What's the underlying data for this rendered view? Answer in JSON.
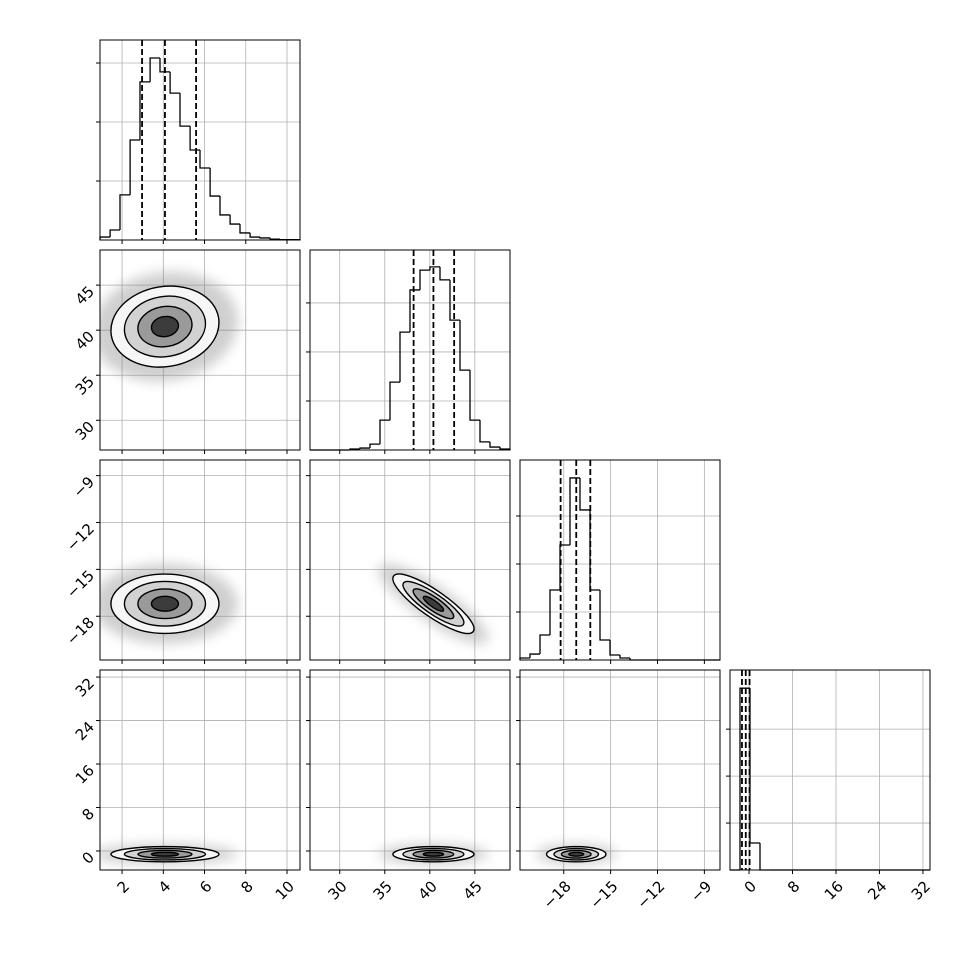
{
  "chart_data": {
    "type": "corner",
    "parameters": [
      {
        "lim": [
          0.93,
          10.63
        ],
        "ticks": [
          2,
          4,
          6,
          8,
          10
        ],
        "quantiles": [
          2.97,
          4.08,
          5.59
        ],
        "bins": [
          0.93,
          1.42,
          1.9,
          2.39,
          2.87,
          3.36,
          3.84,
          4.33,
          4.81,
          5.3,
          5.78,
          6.27,
          6.75,
          7.24,
          7.72,
          8.21,
          8.69,
          9.18,
          9.66,
          10.15,
          10.63
        ],
        "counts": [
          10,
          34,
          153,
          339,
          536,
          617,
          570,
          498,
          386,
          305,
          244,
          149,
          85,
          54,
          24,
          10,
          7,
          3,
          1,
          1
        ],
        "count_lim": [
          0,
          678
        ],
        "count_ticks": [
          200,
          400,
          600
        ]
      },
      {
        "lim": [
          26.7,
          48.9
        ],
        "ticks": [
          30,
          35,
          40,
          45
        ],
        "quantiles": [
          38.2,
          40.4,
          42.7
        ],
        "bins": [
          26.7,
          27.81,
          28.92,
          30.03,
          31.14,
          32.25,
          33.36,
          34.47,
          35.58,
          36.69,
          37.8,
          38.91,
          40.02,
          41.13,
          42.24,
          43.35,
          44.46,
          45.57,
          46.68,
          47.79,
          48.9
        ],
        "counts": [
          0,
          0,
          0,
          0,
          4,
          8,
          24,
          122,
          277,
          481,
          653,
          734,
          747,
          694,
          530,
          326,
          122,
          33,
          12,
          4
        ],
        "count_lim": [
          0,
          816
        ],
        "count_ticks": [
          200,
          400,
          600
        ]
      },
      {
        "lim": [
          -20.8,
          -8.0
        ],
        "ticks": [
          {
            "value": -18,
            "label": "−18"
          },
          {
            "value": -15,
            "label": "−15"
          },
          {
            "value": -12,
            "label": "−12"
          },
          {
            "value": -9,
            "label": "−9"
          }
        ],
        "quantiles": [
          -18.2,
          -17.2,
          -16.3
        ],
        "bins": [
          -20.8,
          -20.16,
          -19.52,
          -18.88,
          -18.24,
          -17.6,
          -16.96,
          -16.32,
          -15.68,
          -15.04,
          -14.4,
          -13.76,
          -13.12,
          -12.48,
          -11.84,
          -11.2,
          -10.56,
          -9.92,
          -9.28,
          -8.64,
          -8.0
        ],
        "counts": [
          21,
          62,
          260,
          729,
          1198,
          1896,
          1563,
          729,
          208,
          52,
          21,
          0,
          0,
          0,
          0,
          0,
          0,
          0,
          0,
          0
        ],
        "count_lim": [
          0,
          2083
        ],
        "count_ticks": [
          500,
          1000,
          1500
        ]
      },
      {
        "lim": [
          -3.5,
          33.3
        ],
        "ticks": [
          0,
          8,
          16,
          24,
          32
        ],
        "quantiles": [
          -1.3,
          -0.6,
          0.1
        ],
        "bins": [
          -3.5,
          -1.66,
          0.18,
          2.02,
          3.86,
          5.7,
          7.54,
          9.38,
          11.22,
          13.06,
          14.9,
          16.74,
          18.58,
          20.42,
          22.26,
          24.1,
          25.94,
          27.78,
          29.62,
          31.46,
          33.3
        ],
        "counts": [
          0,
          19362,
          2872,
          0,
          0,
          0,
          0,
          0,
          0,
          0,
          0,
          0,
          0,
          0,
          0,
          0,
          0,
          0,
          0,
          0
        ],
        "count_lim": [
          0,
          21300
        ],
        "count_ticks": [
          5000,
          10000,
          15000
        ]
      }
    ],
    "correlations": [
      [
        0.1
      ],
      [
        0.0,
        -0.85
      ],
      [
        0.0,
        0.0,
        0.0
      ]
    ],
    "grid": true
  }
}
